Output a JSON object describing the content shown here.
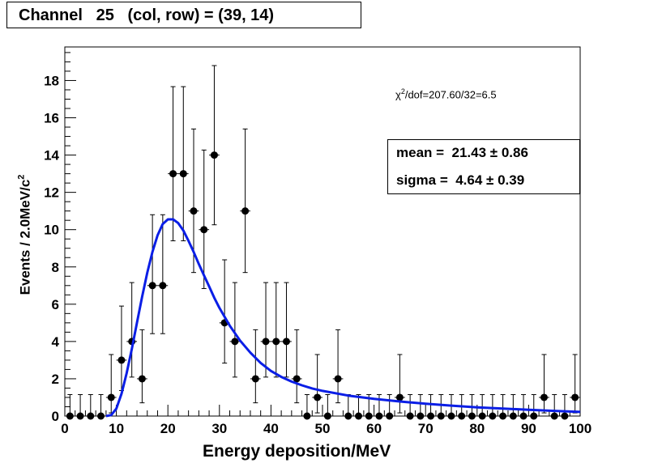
{
  "title": "Channel   25   (col, row) = (39, 14)",
  "chi2": {
    "label": "χ",
    "sup": "2",
    "rest": "/dof=207.60/32=6.5"
  },
  "stats": {
    "mean": "mean =  21.43 ± 0.86",
    "sigma": "sigma =  4.64 ± 0.39"
  },
  "axes": {
    "xlabel": "Energy deposition/MeV",
    "ylabel_main": "Events / 2.0MeV/c",
    "ylabel_sup": "2"
  },
  "colors": {
    "fit": "#0a1ee6",
    "data": "#000000",
    "frame": "#000000"
  },
  "chart_data": {
    "type": "scatter",
    "xlim": [
      0,
      100
    ],
    "ylim": [
      0,
      19.8
    ],
    "xticks": [
      0,
      10,
      20,
      30,
      40,
      50,
      60,
      70,
      80,
      90,
      100
    ],
    "yticks": [
      0,
      2,
      4,
      6,
      8,
      10,
      12,
      14,
      16,
      18
    ],
    "bin_width": 2.0,
    "series": [
      {
        "name": "data",
        "x": [
          1,
          3,
          5,
          7,
          9,
          11,
          13,
          15,
          17,
          19,
          21,
          23,
          25,
          27,
          29,
          31,
          33,
          35,
          37,
          39,
          41,
          43,
          45,
          47,
          49,
          51,
          53,
          55,
          57,
          59,
          61,
          63,
          65,
          67,
          69,
          71,
          73,
          75,
          77,
          79,
          81,
          83,
          85,
          87,
          89,
          91,
          93,
          95,
          97,
          99
        ],
        "y": [
          0,
          0,
          0,
          0,
          1,
          3,
          4,
          2,
          7,
          7,
          13,
          13,
          11,
          10,
          14,
          5,
          4,
          11,
          2,
          4,
          4,
          4,
          2,
          0,
          1,
          0,
          2,
          0,
          0,
          0,
          0,
          0,
          1,
          0,
          0,
          0,
          0,
          0,
          0,
          0,
          0,
          0,
          0,
          0,
          0,
          0,
          1,
          0,
          0,
          1
        ],
        "yerr_up": [
          1.15,
          1.15,
          1.15,
          1.15,
          2.3,
          2.9,
          3.16,
          2.63,
          3.8,
          3.8,
          4.67,
          4.67,
          4.4,
          4.27,
          4.8,
          3.38,
          3.16,
          4.4,
          2.63,
          3.16,
          3.16,
          3.16,
          2.63,
          1.15,
          2.3,
          1.15,
          2.63,
          1.15,
          1.15,
          1.15,
          1.15,
          1.15,
          2.3,
          1.15,
          1.15,
          1.15,
          1.15,
          1.15,
          1.15,
          1.15,
          1.15,
          1.15,
          1.15,
          1.15,
          1.15,
          1.15,
          2.3,
          1.15,
          1.15,
          2.3
        ],
        "yerr_down": [
          0,
          0,
          0,
          0,
          0.83,
          1.63,
          1.91,
          1.29,
          2.58,
          2.58,
          3.6,
          3.6,
          3.3,
          3.16,
          3.74,
          2.16,
          1.91,
          3.3,
          1.29,
          1.91,
          1.91,
          1.91,
          1.29,
          0,
          0.83,
          0,
          1.29,
          0,
          0,
          0,
          0,
          0,
          0.83,
          0,
          0,
          0,
          0,
          0,
          0,
          0,
          0,
          0,
          0,
          0,
          0,
          0,
          0.83,
          0,
          0,
          0.83
        ]
      },
      {
        "name": "fit",
        "x": [
          8,
          9,
          10,
          11,
          12,
          13,
          14,
          15,
          16,
          17,
          18,
          19,
          20,
          21,
          22,
          23,
          24,
          25,
          26,
          27,
          28,
          29,
          30,
          32,
          34,
          36,
          38,
          40,
          42,
          44,
          46,
          48,
          50,
          55,
          60,
          65,
          70,
          75,
          80,
          85,
          90,
          95,
          100
        ],
        "y": [
          0,
          0.05,
          0.4,
          1.2,
          2.3,
          3.6,
          5.0,
          6.4,
          7.7,
          8.8,
          9.7,
          10.3,
          10.55,
          10.55,
          10.35,
          9.95,
          9.4,
          8.8,
          8.15,
          7.55,
          6.95,
          6.35,
          5.8,
          4.85,
          4.05,
          3.4,
          2.85,
          2.42,
          2.1,
          1.85,
          1.65,
          1.48,
          1.35,
          1.1,
          0.92,
          0.78,
          0.66,
          0.56,
          0.47,
          0.4,
          0.34,
          0.28,
          0.22
        ]
      }
    ]
  }
}
